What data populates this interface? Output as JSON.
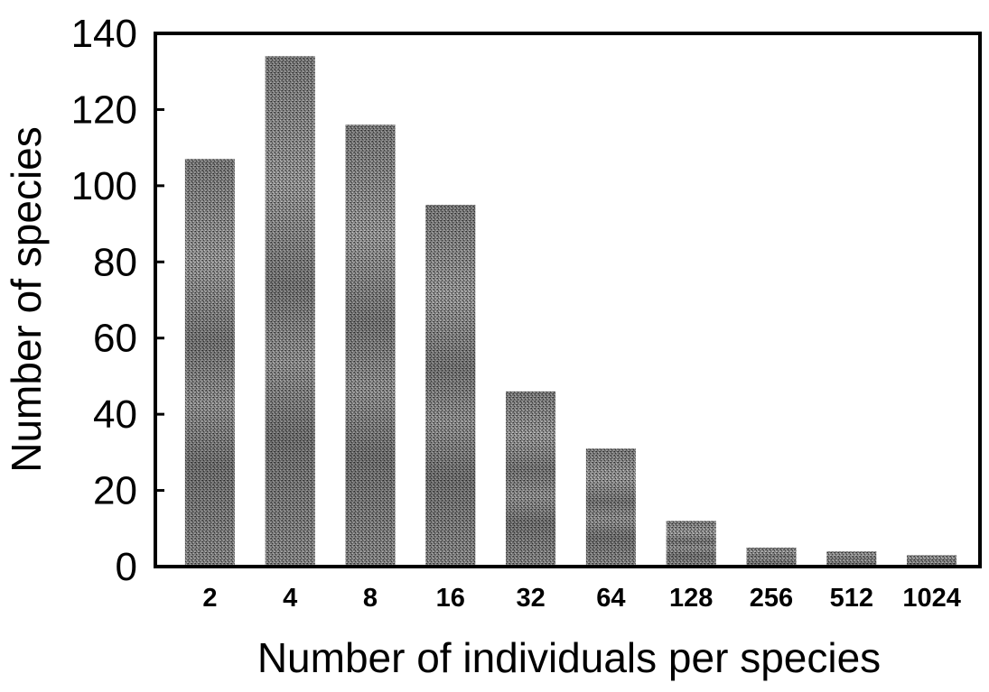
{
  "chart_data": {
    "type": "bar",
    "categories": [
      "2",
      "4",
      "8",
      "16",
      "32",
      "64",
      "128",
      "256",
      "512",
      "1024"
    ],
    "values": [
      107,
      134,
      116,
      95,
      46,
      31,
      12,
      5,
      4,
      3
    ],
    "xlabel": "Number of individuals per species",
    "ylabel": "Number of species",
    "ylim": [
      0,
      140
    ],
    "yticks": [
      "0",
      "20",
      "40",
      "60",
      "80",
      "100",
      "120",
      "140"
    ],
    "grid": false,
    "legend": "none"
  },
  "colors": {
    "bar_light": "#bdbdbd",
    "bar_dark": "#5a5a5a",
    "axis": "#000000"
  }
}
